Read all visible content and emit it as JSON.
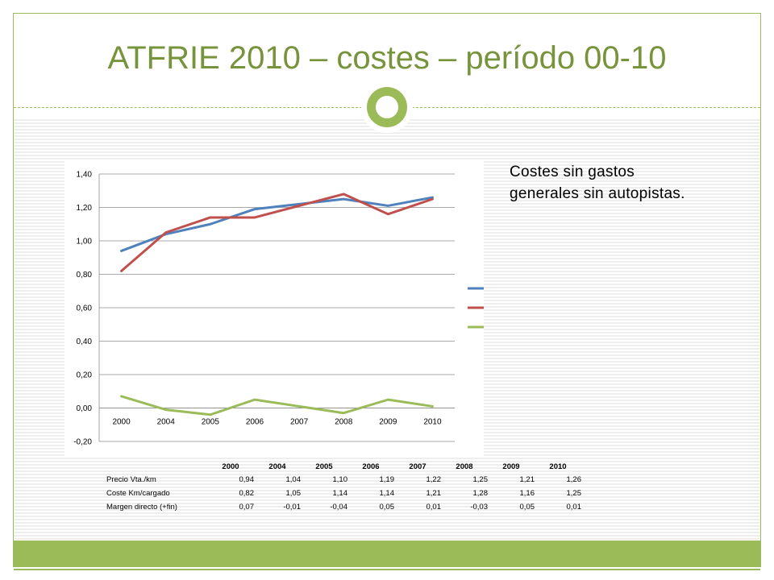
{
  "slide": {
    "title": "ATFRIE 2010 – costes – período 00-10",
    "note": "Costes sin gastos\ngenerales sin autopistas.",
    "accent_color": "#9bbb59",
    "title_color": "#77933c"
  },
  "chart_data": {
    "type": "line",
    "categories": [
      "2000",
      "2004",
      "2005",
      "2006",
      "2007",
      "2008",
      "2009",
      "2010"
    ],
    "series": [
      {
        "name": "Precio Vta./km",
        "color": "#4f81bd",
        "values": [
          0.94,
          1.04,
          1.1,
          1.19,
          1.22,
          1.25,
          1.21,
          1.26
        ],
        "labels": [
          "0,94",
          "1,04",
          "1,10",
          "1,19",
          "1,22",
          "1,25",
          "1,21",
          "1,26"
        ]
      },
      {
        "name": "Coste Km/cargado",
        "color": "#c0504d",
        "values": [
          0.82,
          1.05,
          1.14,
          1.14,
          1.21,
          1.28,
          1.16,
          1.25
        ],
        "labels": [
          "0,82",
          "1,05",
          "1,14",
          "1,14",
          "1,21",
          "1,28",
          "1,16",
          "1,25"
        ]
      },
      {
        "name": "Margen directo (+fin)",
        "color": "#9bbb59",
        "values": [
          0.07,
          -0.01,
          -0.04,
          0.05,
          0.01,
          -0.03,
          0.05,
          0.01
        ],
        "labels": [
          "0,07",
          "-0,01",
          "-0,04",
          "0,05",
          "0,01",
          "-0,03",
          "0,05",
          "0,01"
        ]
      }
    ],
    "ylim": [
      -0.2,
      1.4
    ],
    "yticks": [
      -0.2,
      0,
      0.2,
      0.4,
      0.6,
      0.8,
      1.0,
      1.2,
      1.4
    ],
    "ytick_labels": [
      "-0,20",
      "0,00",
      "0,20",
      "0,40",
      "0,60",
      "0,80",
      "1,00",
      "1,20",
      "1,40"
    ],
    "grid": true,
    "legend": "right",
    "data_table": true
  }
}
